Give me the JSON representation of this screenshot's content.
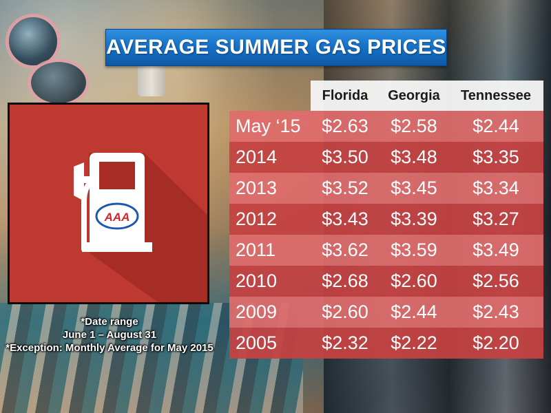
{
  "chart_data": {
    "type": "table",
    "title": "AVERAGE SUMMER GAS PRICES",
    "columns": [
      "Florida",
      "Georgia",
      "Tennessee"
    ],
    "rows": [
      {
        "label": "May ‘15",
        "values": [
          "$2.63",
          "$2.58",
          "$2.44"
        ]
      },
      {
        "label": "2014",
        "values": [
          "$3.50",
          "$3.48",
          "$3.35"
        ]
      },
      {
        "label": "2013",
        "values": [
          "$3.52",
          "$3.45",
          "$3.34"
        ]
      },
      {
        "label": "2012",
        "values": [
          "$3.43",
          "$3.39",
          "$3.27"
        ]
      },
      {
        "label": "2011",
        "values": [
          "$3.62",
          "$3.59",
          "$3.49"
        ]
      },
      {
        "label": "2010",
        "values": [
          "$2.68",
          "$2.60",
          "$2.56"
        ]
      },
      {
        "label": "2009",
        "values": [
          "$2.60",
          "$2.44",
          "$2.43"
        ]
      },
      {
        "label": "2005",
        "values": [
          "$2.32",
          "$2.22",
          "$2.20"
        ]
      }
    ]
  },
  "footnote": {
    "line1": "*Date range",
    "line2": "June 1 – August 31",
    "line3": "*Exception: Monthly Average for May 2015"
  },
  "icon": {
    "name": "gas-pump-icon",
    "logo_text": "AAA"
  },
  "colors": {
    "title_banner": "#1670c6",
    "tile_red": "#be3a30",
    "row_light": "#e06c6c",
    "row_dark": "#c64242",
    "header_bg": "#f5f5f5"
  }
}
